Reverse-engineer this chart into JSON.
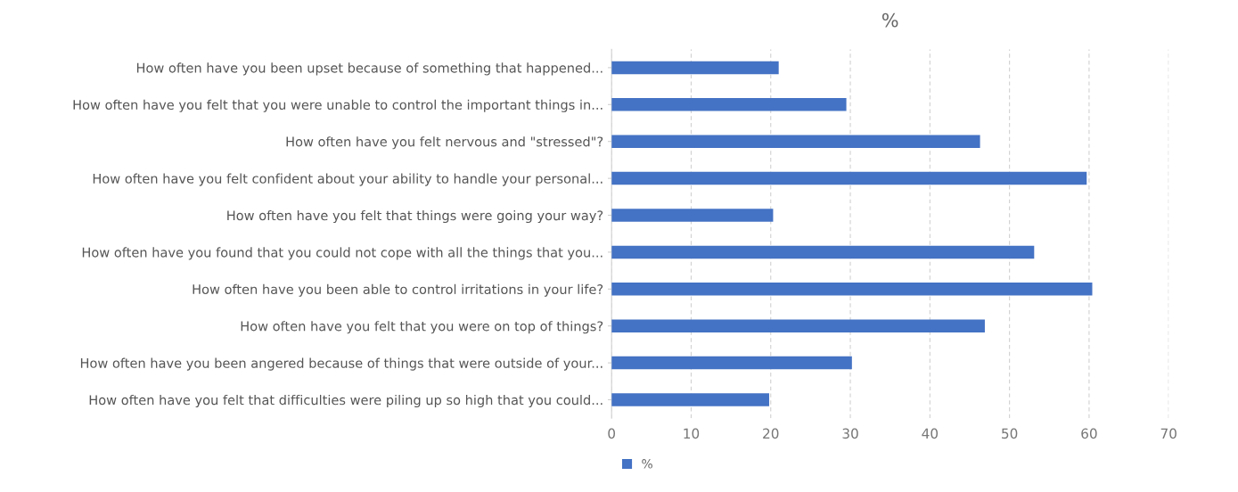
{
  "chart_data": {
    "type": "bar",
    "orientation": "horizontal",
    "title": "%",
    "categories": [
      "How often have you been upset because of something that happened...",
      "How often have you felt that you were unable to control the important things in...",
      "How often have you felt nervous and \"stressed\"?",
      "How often have you felt confident about your ability to handle your personal...",
      "How often have you felt that things were going your way?",
      "How often have you found that you could not cope with all the things that you...",
      "How often have you been able to control irritations in your life?",
      "How often have you felt that you were on top of things?",
      "How often have you been angered because of things that were outside of your...",
      "How often have you felt that difficulties were piling up so high that you could..."
    ],
    "series": [
      {
        "name": "%",
        "color": "#4472c4",
        "values": [
          21,
          29.5,
          46.3,
          59.7,
          20.3,
          53.1,
          60.4,
          46.9,
          30.2,
          19.8
        ]
      }
    ],
    "xlim": [
      0,
      70
    ],
    "xticks": [
      0,
      10,
      20,
      30,
      40,
      50,
      60,
      70
    ],
    "grid": "x",
    "legend": "bottom"
  }
}
